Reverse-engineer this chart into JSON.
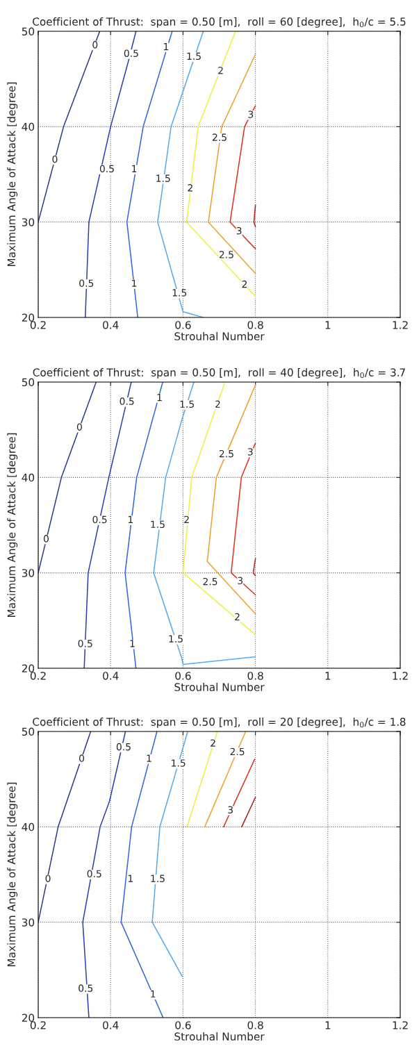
{
  "chart_data": [
    {
      "type": "line",
      "title": "Coefficient of Thrust:  span = 0.50 [m],  roll = 60 [degree],  h$_{0}$/c = 5.5",
      "xlabel": "Strouhal Number",
      "ylabel": "Maximum Angle of Attack [degree]",
      "xlim": [
        0.2,
        1.2
      ],
      "ylim": [
        20,
        50
      ],
      "xticks": [
        0.2,
        0.4,
        0.6,
        0.8,
        1,
        1.2
      ],
      "yticks": [
        20,
        30,
        40,
        50
      ],
      "grid": true,
      "series": [
        {
          "color": "#2c3a8c",
          "x": [
            0.2,
            0.27,
            0.37
          ],
          "values": [
            30,
            40,
            50
          ]
        },
        {
          "color": "#2a40b0",
          "x": [
            0.33,
            0.34,
            0.4,
            0.45,
            0.47
          ],
          "values": [
            20,
            30,
            40,
            47,
            50
          ]
        },
        {
          "color": "#3366dd",
          "x": [
            0.475,
            0.445,
            0.49,
            0.57
          ],
          "values": [
            20,
            30,
            40,
            50
          ]
        },
        {
          "color": "#55aaee",
          "x": [
            0.656,
            0.6,
            0.53,
            0.567,
            0.656
          ],
          "values": [
            20,
            20.6,
            30,
            40,
            50
          ]
        },
        {
          "color": "#eeee44",
          "x": [
            0.8,
            0.61,
            0.642,
            0.745
          ],
          "values": [
            22.2,
            30,
            40,
            50
          ]
        },
        {
          "color": "#f0a030",
          "x": [
            0.8,
            0.67,
            0.707,
            0.8
          ],
          "values": [
            24.6,
            30,
            40,
            47.6
          ]
        },
        {
          "color": "#dd3322",
          "x": [
            0.8,
            0.73,
            0.77,
            0.8
          ],
          "values": [
            27.2,
            30,
            40,
            42.2
          ]
        },
        {
          "color": "#b02020",
          "x": [
            0.8,
            0.796,
            0.8
          ],
          "values": [
            29.5,
            30,
            31.8
          ]
        }
      ],
      "annotations": [
        {
          "text": "0",
          "x": 0.357,
          "y": 48.5
        },
        {
          "text": "0",
          "x": 0.246,
          "y": 36.5
        },
        {
          "text": "0.5",
          "x": 0.457,
          "y": 47.6
        },
        {
          "text": "0.5",
          "x": 0.39,
          "y": 35.5
        },
        {
          "text": "0.5",
          "x": 0.333,
          "y": 23.5
        },
        {
          "text": "1",
          "x": 0.553,
          "y": 48.3
        },
        {
          "text": "1",
          "x": 0.465,
          "y": 35.5
        },
        {
          "text": "1",
          "x": 0.465,
          "y": 23.5
        },
        {
          "text": "1.5",
          "x": 0.63,
          "y": 47.3
        },
        {
          "text": "1.5",
          "x": 0.545,
          "y": 34.5
        },
        {
          "text": "1.5",
          "x": 0.59,
          "y": 22.5
        },
        {
          "text": "2",
          "x": 0.704,
          "y": 45.8
        },
        {
          "text": "2",
          "x": 0.62,
          "y": 33.5
        },
        {
          "text": "2",
          "x": 0.77,
          "y": 23.4
        },
        {
          "text": "2.5",
          "x": 0.701,
          "y": 38.8
        },
        {
          "text": "2.5",
          "x": 0.72,
          "y": 26.5
        },
        {
          "text": "3",
          "x": 0.787,
          "y": 41.2
        },
        {
          "text": "3",
          "x": 0.755,
          "y": 29.0
        }
      ]
    },
    {
      "type": "line",
      "title": "Coefficient of Thrust:  span = 0.50 [m],  roll = 40 [degree],  h$_{0}$/c = 3.7",
      "xlabel": "Strouhal Number",
      "ylabel": "Maximum Angle of Attack [degree]",
      "xlim": [
        0.2,
        1.2
      ],
      "ylim": [
        20,
        50
      ],
      "xticks": [
        0.2,
        0.4,
        0.6,
        0.8,
        1,
        1.2
      ],
      "yticks": [
        20,
        30,
        40,
        50
      ],
      "grid": true,
      "series": [
        {
          "color": "#2c3a8c",
          "x": [
            0.2,
            0.264,
            0.36
          ],
          "values": [
            30,
            40,
            50
          ]
        },
        {
          "color": "#2a40b0",
          "x": [
            0.327,
            0.338,
            0.395,
            0.436,
            0.457
          ],
          "values": [
            20,
            30,
            40,
            46.6,
            50
          ]
        },
        {
          "color": "#3366dd",
          "x": [
            0.47,
            0.44,
            0.472,
            0.544
          ],
          "values": [
            20,
            30,
            40,
            50
          ]
        },
        {
          "color": "#55aaee",
          "x": [
            0.8,
            0.6,
            0.597,
            0.519,
            0.552,
            0.598,
            0.63
          ],
          "values": [
            21.2,
            20.4,
            21,
            30,
            40,
            46.2,
            50
          ]
        },
        {
          "color": "#eeee44",
          "x": [
            0.8,
            0.6,
            0.624,
            0.716
          ],
          "values": [
            23.5,
            30,
            40,
            50
          ]
        },
        {
          "color": "#f0a030",
          "x": [
            0.8,
            0.667,
            0.692,
            0.8
          ],
          "values": [
            25.7,
            31.2,
            40,
            49.7
          ]
        },
        {
          "color": "#dd3322",
          "x": [
            0.8,
            0.733,
            0.761,
            0.8
          ],
          "values": [
            27.7,
            30,
            40,
            43.6
          ]
        },
        {
          "color": "#b02020",
          "x": [
            0.8,
            0.794,
            0.8
          ],
          "values": [
            29.7,
            30,
            31.5
          ]
        }
      ],
      "annotations": [
        {
          "text": "0",
          "x": 0.314,
          "y": 45.2
        },
        {
          "text": "0",
          "x": 0.222,
          "y": 33.5
        },
        {
          "text": "0.5",
          "x": 0.445,
          "y": 47.9
        },
        {
          "text": "0.5",
          "x": 0.37,
          "y": 35.5
        },
        {
          "text": "0.5",
          "x": 0.33,
          "y": 22.5
        },
        {
          "text": "1",
          "x": 0.535,
          "y": 48.3
        },
        {
          "text": "1",
          "x": 0.455,
          "y": 35.5
        },
        {
          "text": "1",
          "x": 0.46,
          "y": 22.5
        },
        {
          "text": "1.5",
          "x": 0.611,
          "y": 47.6
        },
        {
          "text": "1.5",
          "x": 0.53,
          "y": 35
        },
        {
          "text": "1.5",
          "x": 0.58,
          "y": 23
        },
        {
          "text": "2",
          "x": 0.696,
          "y": 47.6
        },
        {
          "text": "2",
          "x": 0.61,
          "y": 35.5
        },
        {
          "text": "2",
          "x": 0.75,
          "y": 25.3
        },
        {
          "text": "2.5",
          "x": 0.72,
          "y": 42.4
        },
        {
          "text": "2.5",
          "x": 0.675,
          "y": 29.0
        },
        {
          "text": "3",
          "x": 0.786,
          "y": 42.6
        },
        {
          "text": "3",
          "x": 0.758,
          "y": 29.1
        }
      ]
    },
    {
      "type": "line",
      "title": "Coefficient of Thrust:  span = 0.50 [m],  roll = 20 [degree],  h$_{0}$/c = 1.8",
      "xlabel": "Strouhal Number",
      "ylabel": "Maximum Angle of Attack [degree]",
      "xlim": [
        0.2,
        1.2
      ],
      "ylim": [
        20,
        50
      ],
      "xticks": [
        0.2,
        0.4,
        0.6,
        0.8,
        1,
        1.2
      ],
      "yticks": [
        20,
        30,
        40,
        50
      ],
      "grid": true,
      "series": [
        {
          "color": "#2c3a8c",
          "x": [
            0.2,
            0.255,
            0.345
          ],
          "values": [
            30,
            40,
            50
          ]
        },
        {
          "color": "#2a40b0",
          "x": [
            0.34,
            0.323,
            0.371,
            0.397,
            0.441
          ],
          "values": [
            20,
            30,
            40,
            42.7,
            50
          ]
        },
        {
          "color": "#3366dd",
          "x": [
            0.545,
            0.429,
            0.458,
            0.528
          ],
          "values": [
            20,
            30,
            40,
            50
          ]
        },
        {
          "color": "#55aaee",
          "x": [
            0.598,
            0.515,
            0.536,
            0.613
          ],
          "values": [
            24.3,
            30,
            40,
            50
          ]
        },
        {
          "color": "#eeee44",
          "x": [
            0.611,
            0.695
          ],
          "values": [
            40,
            50
          ]
        },
        {
          "color": "#f0a030",
          "x": [
            0.66,
            0.773
          ],
          "values": [
            40,
            50
          ]
        },
        {
          "color": "#dd3322",
          "x": [
            0.712,
            0.798
          ],
          "values": [
            40,
            47.1
          ]
        },
        {
          "color": "#a02020",
          "x": [
            0.762,
            0.8
          ],
          "values": [
            40,
            43.1
          ]
        }
      ],
      "annotations": [
        {
          "text": "0",
          "x": 0.32,
          "y": 47.1
        },
        {
          "text": "0",
          "x": 0.227,
          "y": 34.5
        },
        {
          "text": "0.5",
          "x": 0.436,
          "y": 48.3
        },
        {
          "text": "0.5",
          "x": 0.355,
          "y": 35
        },
        {
          "text": "0.5",
          "x": 0.331,
          "y": 23
        },
        {
          "text": "1",
          "x": 0.506,
          "y": 47.1
        },
        {
          "text": "1",
          "x": 0.455,
          "y": 34.5
        },
        {
          "text": "1",
          "x": 0.517,
          "y": 22.4
        },
        {
          "text": "1.5",
          "x": 0.587,
          "y": 46.6
        },
        {
          "text": "1.5",
          "x": 0.53,
          "y": 34.5
        },
        {
          "text": "2",
          "x": 0.683,
          "y": 48.7
        },
        {
          "text": "2.5",
          "x": 0.75,
          "y": 47.8
        },
        {
          "text": "3",
          "x": 0.731,
          "y": 41.7
        }
      ]
    }
  ]
}
